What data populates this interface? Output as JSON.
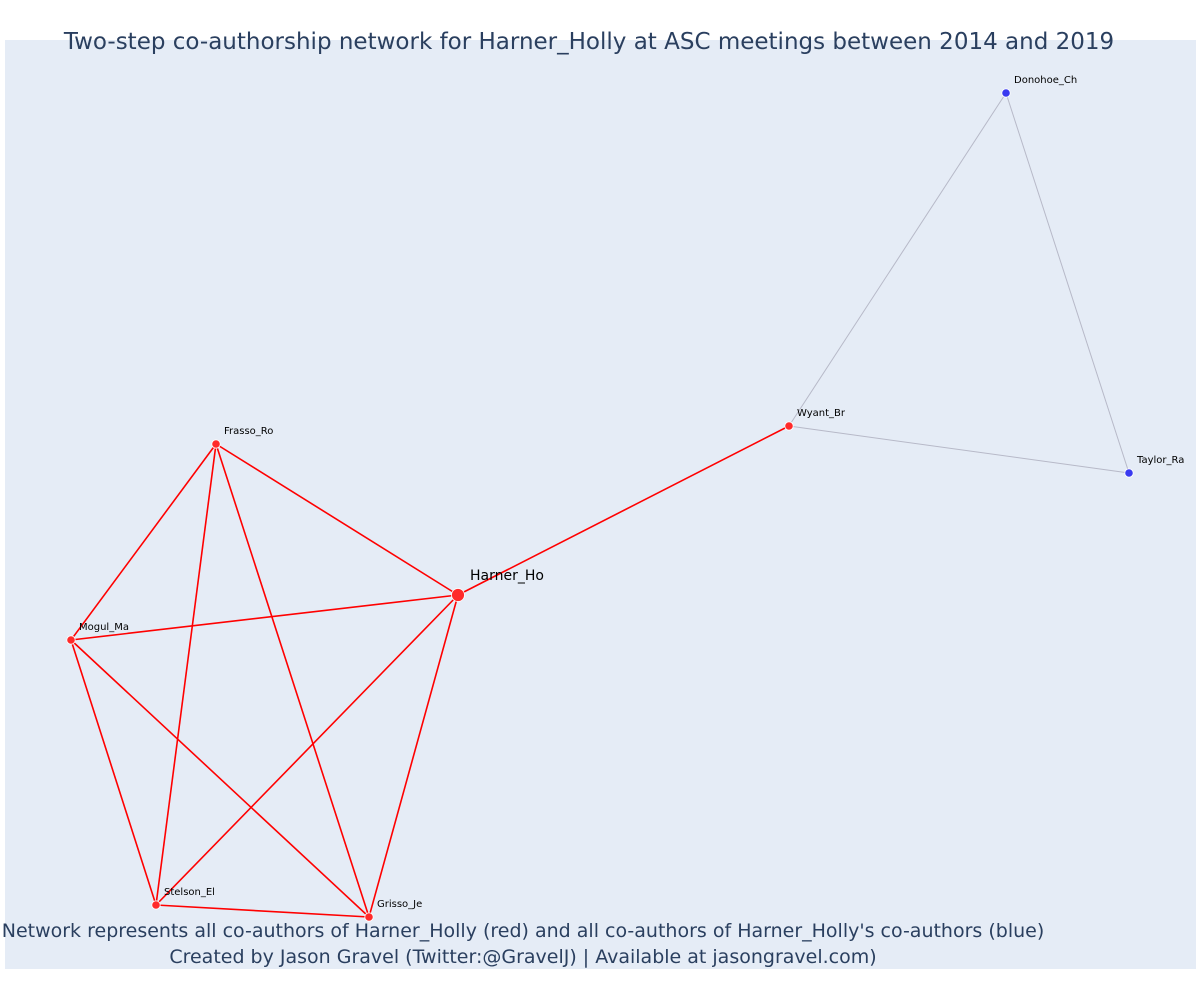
{
  "title": "Two-step co-authorship network for Harner_Holly at ASC meetings between 2014 and 2019",
  "footer": {
    "line1": "Network represents all co-authors of Harner_Holly (red) and all co-authors of Harner_Holly's co-authors (blue)",
    "line2": "Created by Jason Gravel (Twitter:@GravelJ) | Available at jasongravel.com)"
  },
  "colors": {
    "background": "#e5ecf6",
    "coauthor": "#ff2a2a",
    "second_step": "#3a3af0",
    "edge_red": "#ff0000",
    "edge_gray": "#b7b9c8"
  },
  "nodes": [
    {
      "id": "Harner_Ho",
      "label": "Harner_Ho",
      "group": "focal"
    },
    {
      "id": "Frasso_Ro",
      "label": "Frasso_Ro",
      "group": "coauthor"
    },
    {
      "id": "Mogul_Ma",
      "label": "Mogul_Ma",
      "group": "coauthor"
    },
    {
      "id": "Stelson_El",
      "label": "Stelson_El",
      "group": "coauthor"
    },
    {
      "id": "Grisso_Je",
      "label": "Grisso_Je",
      "group": "coauthor"
    },
    {
      "id": "Wyant_Br",
      "label": "Wyant_Br",
      "group": "coauthor"
    },
    {
      "id": "Donohoe_Ch",
      "label": "Donohoe_Ch",
      "group": "second_step"
    },
    {
      "id": "Taylor_Ra",
      "label": "Taylor_Ra",
      "group": "second_step"
    }
  ],
  "edges": [
    {
      "source": "Harner_Ho",
      "target": "Frasso_Ro",
      "type": "red"
    },
    {
      "source": "Harner_Ho",
      "target": "Mogul_Ma",
      "type": "red"
    },
    {
      "source": "Harner_Ho",
      "target": "Stelson_El",
      "type": "red"
    },
    {
      "source": "Harner_Ho",
      "target": "Grisso_Je",
      "type": "red"
    },
    {
      "source": "Harner_Ho",
      "target": "Wyant_Br",
      "type": "red"
    },
    {
      "source": "Frasso_Ro",
      "target": "Mogul_Ma",
      "type": "red"
    },
    {
      "source": "Frasso_Ro",
      "target": "Stelson_El",
      "type": "red"
    },
    {
      "source": "Frasso_Ro",
      "target": "Grisso_Je",
      "type": "red"
    },
    {
      "source": "Mogul_Ma",
      "target": "Stelson_El",
      "type": "red"
    },
    {
      "source": "Mogul_Ma",
      "target": "Grisso_Je",
      "type": "red"
    },
    {
      "source": "Stelson_El",
      "target": "Grisso_Je",
      "type": "red"
    },
    {
      "source": "Wyant_Br",
      "target": "Donohoe_Ch",
      "type": "gray"
    },
    {
      "source": "Wyant_Br",
      "target": "Taylor_Ra",
      "type": "gray"
    },
    {
      "source": "Donohoe_Ch",
      "target": "Taylor_Ra",
      "type": "gray"
    }
  ]
}
